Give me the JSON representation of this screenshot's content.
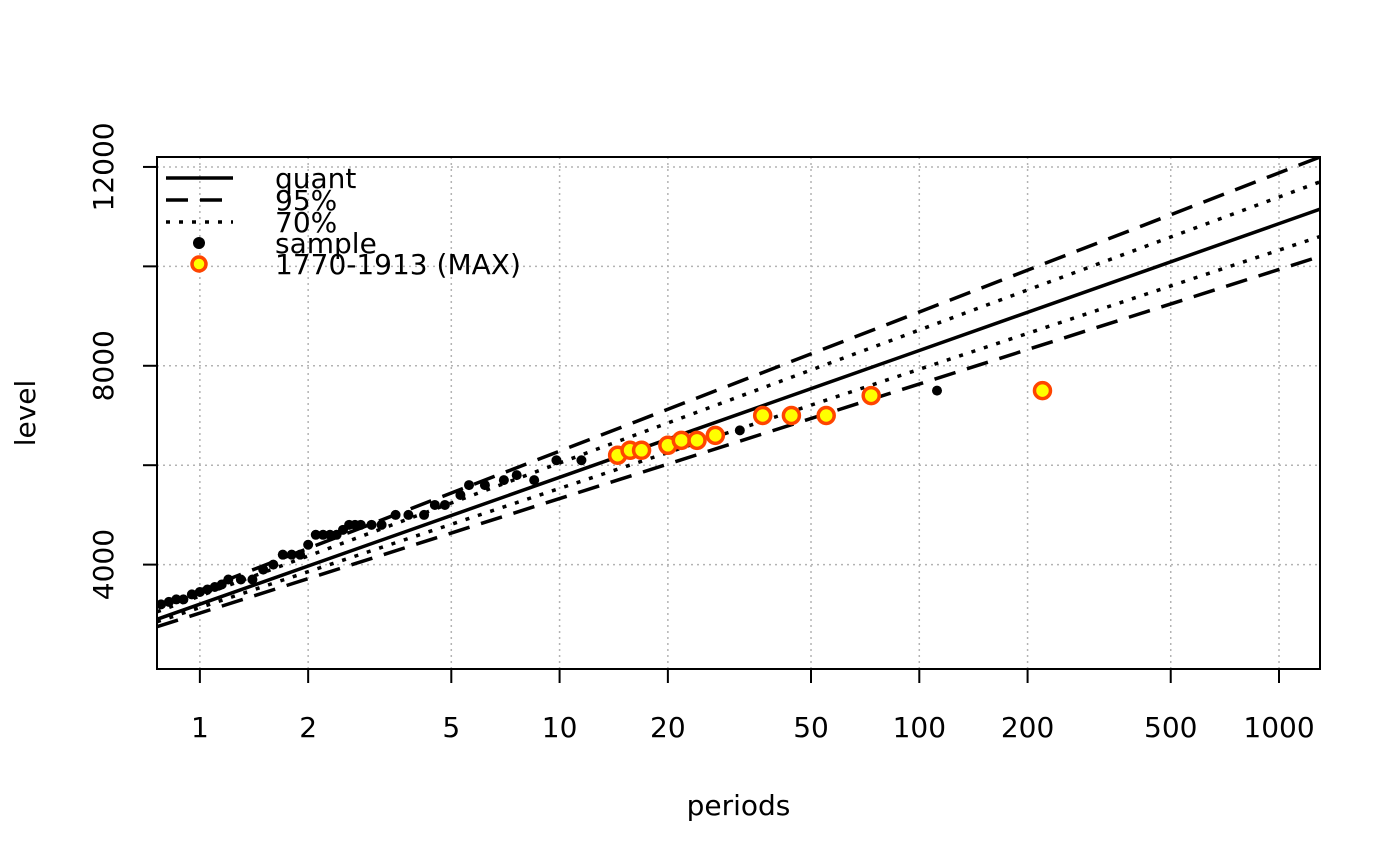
{
  "chart_data": {
    "type": "scatter",
    "title": "",
    "xlabel": "periods",
    "ylabel": "level",
    "x_scale": "log",
    "xlim": [
      0.76,
      1300
    ],
    "ylim": [
      1900,
      12200
    ],
    "x_ticks": [
      1,
      2,
      5,
      10,
      20,
      50,
      100,
      200,
      500,
      1000
    ],
    "x_tick_labels": [
      "1",
      "2",
      "5",
      "10",
      "20",
      "50",
      "100",
      "200",
      "500",
      "1000"
    ],
    "y_ticks": [
      4000,
      6000,
      8000,
      10000,
      12000
    ],
    "y_tick_labels": [
      "4000",
      "",
      "8000",
      "",
      "12000"
    ],
    "grid": true,
    "legend_position": "top-left",
    "legend": [
      {
        "label": "quant",
        "style": "solid"
      },
      {
        "label": "95%",
        "style": "dashed"
      },
      {
        "label": "70%",
        "style": "dotted"
      },
      {
        "label": "sample",
        "style": "point-black"
      },
      {
        "label": "1770-1913 (MAX)",
        "style": "point-orange"
      }
    ],
    "colors": {
      "line": "#000000",
      "sample": "#000000",
      "max_stroke": "#ff4500",
      "max_fill": "#ffff00",
      "grid": "#b3b3b3"
    },
    "series": [
      {
        "name": "quant",
        "style": "solid",
        "x": [
          0.76,
          1300
        ],
        "y": [
          2900,
          11150
        ]
      },
      {
        "name": "95%",
        "style": "dashed",
        "x": [
          0.76,
          1300
        ],
        "y": [
          3150,
          12200
        ]
      },
      {
        "name": "95%",
        "style": "dashed",
        "x": [
          0.76,
          1300
        ],
        "y": [
          2750,
          10200
        ]
      },
      {
        "name": "70%",
        "style": "dotted",
        "x": [
          0.76,
          1300
        ],
        "y": [
          3050,
          11700
        ]
      },
      {
        "name": "70%",
        "style": "dotted",
        "x": [
          0.76,
          1300
        ],
        "y": [
          2850,
          10600
        ]
      },
      {
        "name": "sample",
        "style": "point-black",
        "x": [
          0.78,
          0.82,
          0.86,
          0.9,
          0.95,
          1.0,
          1.05,
          1.1,
          1.15,
          1.2,
          1.3,
          1.4,
          1.5,
          1.6,
          1.7,
          1.8,
          1.9,
          2.0,
          2.1,
          2.2,
          2.3,
          2.4,
          2.5,
          2.6,
          2.7,
          2.8,
          3.0,
          3.2,
          3.5,
          3.8,
          4.2,
          4.5,
          4.8,
          5.3,
          5.6,
          6.2,
          7.0,
          7.6,
          8.5,
          9.8,
          11.5,
          27.7,
          31.7,
          112
        ],
        "y": [
          3200,
          3250,
          3300,
          3300,
          3400,
          3450,
          3500,
          3550,
          3600,
          3700,
          3700,
          3700,
          3900,
          4000,
          4200,
          4200,
          4200,
          4400,
          4600,
          4600,
          4600,
          4600,
          4700,
          4800,
          4800,
          4800,
          4800,
          4800,
          5000,
          5000,
          5000,
          5200,
          5200,
          5400,
          5600,
          5600,
          5700,
          5800,
          5700,
          6100,
          6100,
          6600,
          6700,
          7500
        ]
      },
      {
        "name": "1770-1913 (MAX)",
        "style": "point-orange",
        "x": [
          14.5,
          15.7,
          16.9,
          20,
          21.8,
          24.1,
          27.1,
          36.7,
          44.1,
          55.1,
          73.5,
          220
        ],
        "y": [
          6200,
          6300,
          6300,
          6400,
          6500,
          6500,
          6600,
          7000,
          7000,
          7000,
          7400,
          7500
        ]
      }
    ]
  }
}
